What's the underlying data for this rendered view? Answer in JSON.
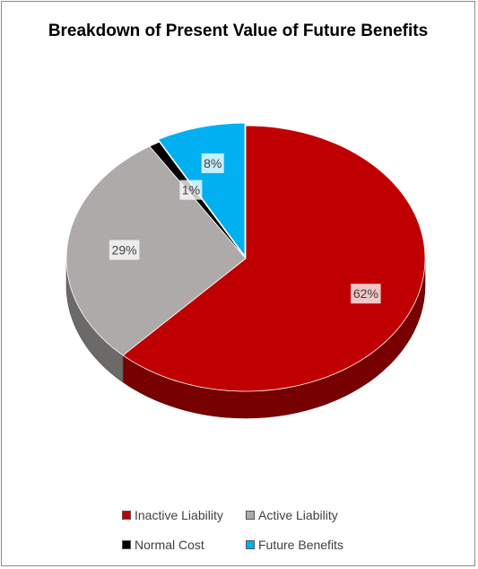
{
  "chart_data": {
    "type": "pie",
    "title": "Breakdown of Present Value of Future Benefits",
    "slices": [
      {
        "name": "Inactive Liability",
        "value": 62,
        "label": "62%",
        "color": "#c00000"
      },
      {
        "name": "Active Liability",
        "value": 29,
        "label": "29%",
        "color": "#aeaaaa"
      },
      {
        "name": "Normal Cost",
        "value": 1,
        "label": "1%",
        "color": "#000000"
      },
      {
        "name": "Future Benefits",
        "value": 8,
        "label": "8%",
        "color": "#00b0f0"
      }
    ],
    "style": "3d-pie",
    "exploded_slice": "Future Benefits",
    "legend_position": "bottom"
  }
}
